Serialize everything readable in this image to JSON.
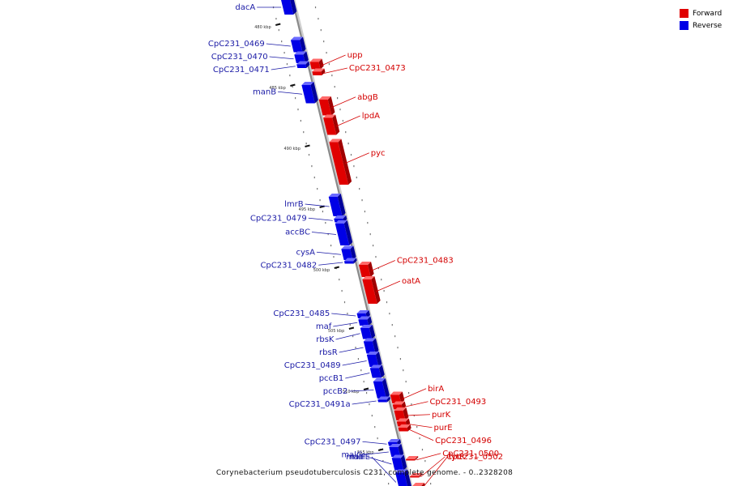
{
  "title": "Corynebacterium pseudotuberculosis C231, complete genome. - 0..2328208",
  "legend": [
    {
      "label": "Forward",
      "color": "#e00000"
    },
    {
      "label": "Reverse",
      "color": "#0000e6"
    }
  ],
  "colors": {
    "forward": "#e00000",
    "reverse": "#0000e6",
    "axis": "#8a8a8a"
  },
  "axis": {
    "start_kbp": 478,
    "end_kbp": 518
  },
  "ticks": [
    {
      "kbp": 480,
      "label": "480 kbp"
    },
    {
      "kbp": 485,
      "label": "485 kbp"
    },
    {
      "kbp": 490,
      "label": "490 kbp"
    },
    {
      "kbp": 495,
      "label": "495 kbp"
    },
    {
      "kbp": 500,
      "label": "500 kbp"
    },
    {
      "kbp": 505,
      "label": "505 kbp"
    },
    {
      "kbp": 510,
      "label": "510 kbp"
    },
    {
      "kbp": 515,
      "label": "515 kbp"
    }
  ],
  "genes": [
    {
      "name": "dacA",
      "strand": "reverse",
      "start_kbp": 478.0,
      "end_kbp": 479.2
    },
    {
      "name": "CpC231_0469",
      "strand": "reverse",
      "start_kbp": 481.3,
      "end_kbp": 482.3
    },
    {
      "name": "CpC231_0470",
      "strand": "reverse",
      "start_kbp": 482.5,
      "end_kbp": 483.2
    },
    {
      "name": "CpC231_0471",
      "strand": "reverse",
      "start_kbp": 483.3,
      "end_kbp": 483.6
    },
    {
      "name": "manB",
      "strand": "reverse",
      "start_kbp": 485.0,
      "end_kbp": 486.5
    },
    {
      "name": "upp",
      "strand": "forward",
      "start_kbp": 483.1,
      "end_kbp": 483.7
    },
    {
      "name": "CpC231_0473",
      "strand": "forward",
      "start_kbp": 483.9,
      "end_kbp": 484.2
    },
    {
      "name": "abgB",
      "strand": "forward",
      "start_kbp": 486.2,
      "end_kbp": 487.5
    },
    {
      "name": "lpdA",
      "strand": "forward",
      "start_kbp": 487.7,
      "end_kbp": 489.1
    },
    {
      "name": "pyc",
      "strand": "forward",
      "start_kbp": 489.7,
      "end_kbp": 493.2
    },
    {
      "name": "lmrB",
      "strand": "reverse",
      "start_kbp": 494.2,
      "end_kbp": 495.8
    },
    {
      "name": "CpC231_0479",
      "strand": "reverse",
      "start_kbp": 496.0,
      "end_kbp": 496.3
    },
    {
      "name": "accBC",
      "strand": "reverse",
      "start_kbp": 496.4,
      "end_kbp": 498.2
    },
    {
      "name": "cysA",
      "strand": "reverse",
      "start_kbp": 498.5,
      "end_kbp": 499.4
    },
    {
      "name": "CpC231_0482",
      "strand": "reverse",
      "start_kbp": 499.5,
      "end_kbp": 499.7
    },
    {
      "name": "CpC231_0483",
      "strand": "forward",
      "start_kbp": 499.8,
      "end_kbp": 500.8
    },
    {
      "name": "oatA",
      "strand": "forward",
      "start_kbp": 501.0,
      "end_kbp": 503.0
    },
    {
      "name": "CpC231_0485",
      "strand": "reverse",
      "start_kbp": 503.8,
      "end_kbp": 504.2
    },
    {
      "name": "maf",
      "strand": "reverse",
      "start_kbp": 504.3,
      "end_kbp": 504.8
    },
    {
      "name": "rbsK",
      "strand": "reverse",
      "start_kbp": 505.0,
      "end_kbp": 505.9
    },
    {
      "name": "rbsR",
      "strand": "reverse",
      "start_kbp": 506.1,
      "end_kbp": 507.1
    },
    {
      "name": "CpC231_0489",
      "strand": "reverse",
      "start_kbp": 507.2,
      "end_kbp": 508.2
    },
    {
      "name": "pccB1",
      "strand": "reverse",
      "start_kbp": 508.3,
      "end_kbp": 509.1
    },
    {
      "name": "pccB2",
      "strand": "reverse",
      "start_kbp": 509.4,
      "end_kbp": 510.8
    },
    {
      "name": "CpC231_0491a",
      "strand": "reverse",
      "start_kbp": 510.9,
      "end_kbp": 511.1
    },
    {
      "name": "birA",
      "strand": "forward",
      "start_kbp": 510.5,
      "end_kbp": 511.2
    },
    {
      "name": "CpC231_0493",
      "strand": "forward",
      "start_kbp": 511.3,
      "end_kbp": 511.7
    },
    {
      "name": "purK",
      "strand": "forward",
      "start_kbp": 511.8,
      "end_kbp": 512.6
    },
    {
      "name": "purE",
      "strand": "forward",
      "start_kbp": 512.7,
      "end_kbp": 513.1
    },
    {
      "name": "CpC231_0496",
      "strand": "forward",
      "start_kbp": 513.2,
      "end_kbp": 513.5
    },
    {
      "name": "CpC231_0497",
      "strand": "reverse",
      "start_kbp": 514.4,
      "end_kbp": 514.7
    },
    {
      "name": "malG",
      "strand": "reverse",
      "start_kbp": 514.8,
      "end_kbp": 515.6
    },
    {
      "name": "malF",
      "strand": "reverse",
      "start_kbp": 515.7,
      "end_kbp": 516.7
    },
    {
      "name": "malE",
      "strand": "reverse",
      "start_kbp": 516.9,
      "end_kbp": 518.5
    },
    {
      "name": "CpC231_0500",
      "strand": "forward",
      "start_kbp": 515.8,
      "end_kbp": 515.9
    },
    {
      "name": "CpC231_0502",
      "strand": "forward",
      "start_kbp": 517.2,
      "end_kbp": 517.3
    },
    {
      "name": "lytR",
      "strand": "forward",
      "start_kbp": 518.0,
      "end_kbp": 518.2
    }
  ]
}
